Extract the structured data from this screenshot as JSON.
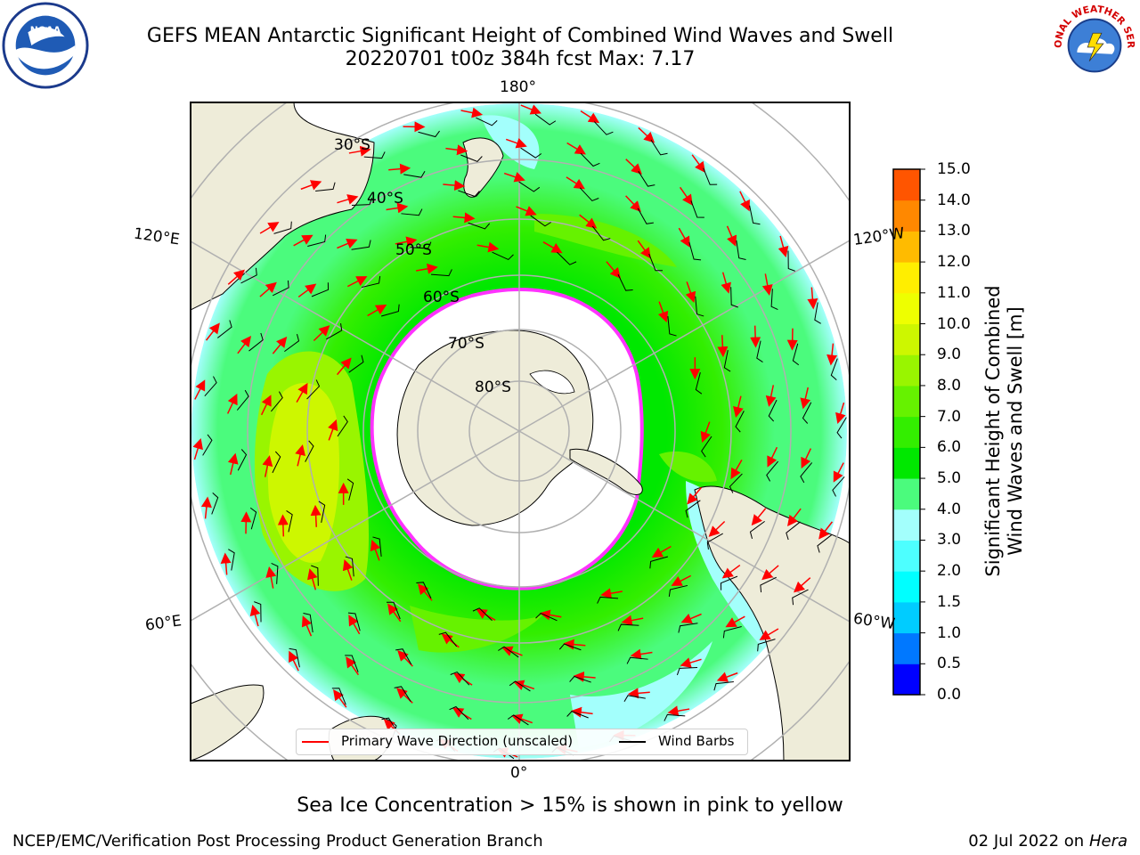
{
  "title": {
    "line1": "GEFS MEAN Antarctic Significant Height of Combined Wind Waves and Swell",
    "line2": "20220701 t00z 384h fcst   Max: 7.17"
  },
  "logos": {
    "left": "NOAA",
    "right": "NATIONAL WEATHER SERVICE"
  },
  "map": {
    "projection": "south-polar-stereographic",
    "meridian_labels": [
      "180°",
      "120°E",
      "120°W",
      "60°E",
      "60°W",
      "0°"
    ],
    "latitude_labels": [
      "30°S",
      "40°S",
      "50°S",
      "60°S",
      "70°S",
      "80°S"
    ],
    "colors": {
      "land": "#eeecd9",
      "ocean_low": "#a3fffc",
      "ocean_mid": "#4bfb7d",
      "ocean_high": "#00e800",
      "ocean_higher": "#66f200",
      "ocean_peak": "#cdf700",
      "sea_ice": "#ffffff",
      "ice_edge": "#ff33ff",
      "arrows": "#ff0000",
      "barbs": "#000000"
    }
  },
  "legend": {
    "wave_label": "Primary Wave Direction (unscaled)",
    "wave_color": "#ff0000",
    "barb_label": "Wind Barbs",
    "barb_color": "#000000"
  },
  "colorbar": {
    "label_line1": "Significant Height of Combined",
    "label_line2": "Wind Waves and Swell [m]",
    "ticks": [
      "0.0",
      "0.5",
      "1.0",
      "1.5",
      "2.0",
      "3.0",
      "4.0",
      "5.0",
      "6.0",
      "7.0",
      "8.0",
      "9.0",
      "10.0",
      "11.0",
      "12.0",
      "13.0",
      "14.0",
      "15.0"
    ],
    "colors": [
      "#0000ff",
      "#0078ff",
      "#00ccff",
      "#00ffff",
      "#4dffff",
      "#a3fffc",
      "#4bfb7d",
      "#00e800",
      "#33ee00",
      "#66f200",
      "#99f500",
      "#cdf700",
      "#eeff00",
      "#ffee00",
      "#ffbb00",
      "#ff8800",
      "#ff5500",
      "#ff2200",
      "#ff0000"
    ]
  },
  "chart_data": {
    "type": "heatmap",
    "title": "GEFS MEAN Antarctic Significant Height of Combined Wind Waves and Swell",
    "subtitle": "20220701 t00z 384h fcst   Max: 7.17",
    "units": "m",
    "max_value": 7.17,
    "color_scale_range": [
      0.0,
      15.0
    ]
  },
  "note": "Sea Ice Concentration > 15% is shown in pink to yellow",
  "footer": {
    "left": "NCEP/EMC/Verification Post Processing Product Generation Branch",
    "right_date": "02 Jul 2022 on ",
    "right_host": "Hera"
  }
}
